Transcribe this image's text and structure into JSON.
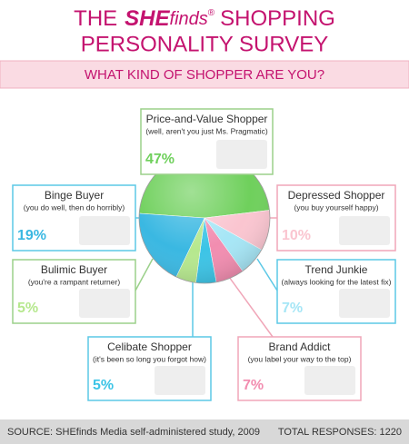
{
  "chart_data": {
    "type": "pie",
    "title_parts": [
      "THE",
      "SHE",
      "finds",
      "®",
      "SHOPPING"
    ],
    "title_line2": "PERSONALITY SURVEY",
    "subtitle": "WHAT KIND OF SHOPPER ARE YOU?",
    "categories": [
      "Price-and-Value Shopper",
      "Depressed Shopper",
      "Trend Junkie",
      "Brand Addict",
      "Celibate Shopper",
      "Bulimic Buyer",
      "Binge Buyer"
    ],
    "notes": [
      "(well, aren't you just Ms. Pragmatic)",
      "(you buy yourself happy)",
      "(always looking for the latest fix)",
      "(you label your way to the top)",
      "(it's been so long you forgot how)",
      "(you're a rampant returner)",
      "(you do well, then do horribly)"
    ],
    "values": [
      47,
      10,
      7,
      7,
      5,
      5,
      19
    ],
    "value_labels": [
      "47%",
      "10%",
      "7%",
      "7%",
      "5%",
      "5%",
      "19%"
    ],
    "colors": [
      "#6fd05c",
      "#fac5d0",
      "#a6e6f6",
      "#f28db0",
      "#3cc4e6",
      "#b6e88e",
      "#3ab8e2"
    ],
    "source": "SOURCE: SHEfinds Media self-administered study, 2009",
    "total": "TOTAL RESPONSES: 1220"
  }
}
